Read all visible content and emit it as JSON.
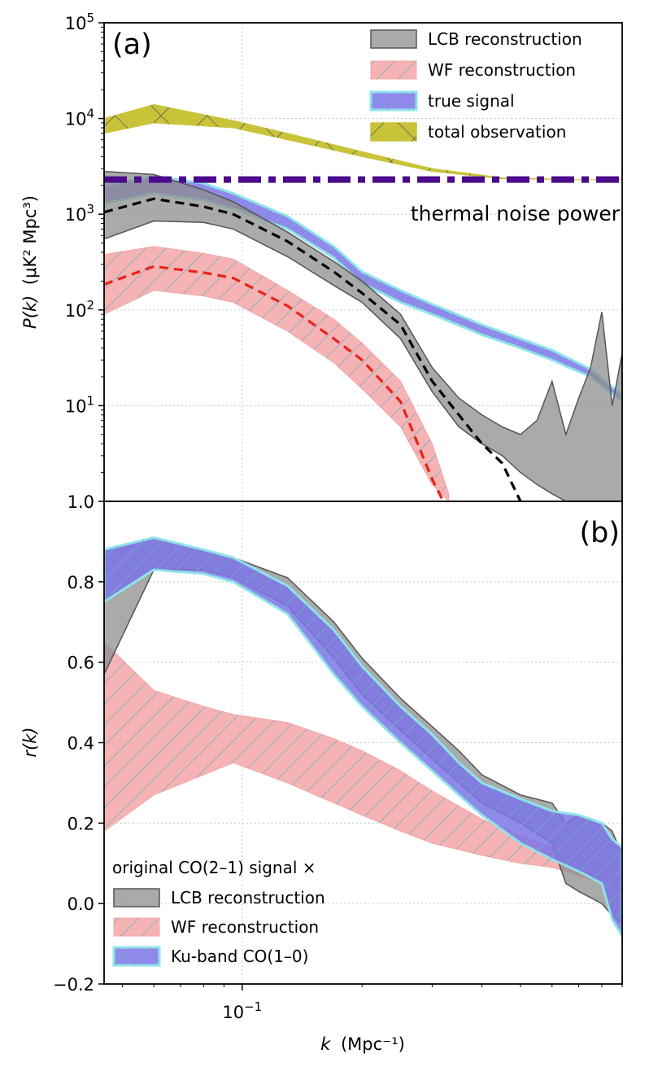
{
  "chart_data": [
    {
      "panel": "(a)",
      "type": "area",
      "xscale": "log",
      "yscale": "log",
      "xlim": [
        0.045,
        0.9
      ],
      "ylim": [
        1.0,
        100000
      ],
      "ylabel_var": "P(k)",
      "ylabel_units": "(μK² Mpc³)",
      "yticks": [
        {
          "value": 1,
          "label": "1.0"
        },
        {
          "value": 10,
          "base": "10",
          "exp": "1"
        },
        {
          "value": 100,
          "base": "10",
          "exp": "2"
        },
        {
          "value": 1000,
          "base": "10",
          "exp": "3"
        },
        {
          "value": 10000,
          "base": "10",
          "exp": "4"
        },
        {
          "value": 100000,
          "base": "10",
          "exp": "5"
        }
      ],
      "annotation": "thermal noise power",
      "noise_level": 2300,
      "legend_position": "top-right",
      "bands": [
        {
          "name": "total observation",
          "color": "#c9c33a",
          "x": [
            0.045,
            0.06,
            0.095,
            0.13,
            0.2,
            0.3,
            0.45,
            0.7,
            0.9
          ],
          "lo": [
            7000,
            9000,
            8000,
            6000,
            4000,
            2800,
            2350,
            2300,
            2300
          ],
          "hi": [
            10000,
            14000,
            9500,
            7000,
            4500,
            3000,
            2400,
            2300,
            2300
          ]
        },
        {
          "name": "true signal",
          "color": "#7d74e9",
          "x": [
            0.045,
            0.06,
            0.08,
            0.095,
            0.13,
            0.17,
            0.2,
            0.25,
            0.3,
            0.4,
            0.5,
            0.6,
            0.75,
            0.9
          ],
          "lo": [
            1300,
            1650,
            1400,
            1150,
            700,
            350,
            190,
            120,
            90,
            55,
            40,
            30,
            20,
            11
          ],
          "hi": [
            2000,
            2500,
            2100,
            1650,
            950,
            460,
            250,
            160,
            115,
            70,
            50,
            38,
            24,
            13
          ]
        },
        {
          "name": "LCB reconstruction",
          "color": "#8e8e8e",
          "x": [
            0.045,
            0.06,
            0.08,
            0.095,
            0.13,
            0.17,
            0.2,
            0.25,
            0.3,
            0.35,
            0.4,
            0.45,
            0.5,
            0.55,
            0.6,
            0.65,
            0.7,
            0.75,
            0.8,
            0.85,
            0.9
          ],
          "lo": [
            550,
            850,
            820,
            700,
            360,
            180,
            120,
            50,
            14,
            6,
            4,
            3,
            2,
            1.5,
            1.2,
            1.0,
            1.0,
            1.0,
            1.0,
            1.0,
            1.0
          ],
          "hi": [
            2800,
            2600,
            1800,
            1350,
            650,
            320,
            200,
            90,
            25,
            12,
            8,
            6,
            5,
            7,
            18,
            5,
            12,
            25,
            95,
            10,
            35
          ]
        },
        {
          "name": "WF reconstruction",
          "color": "#f4a6a6",
          "x": [
            0.045,
            0.06,
            0.08,
            0.095,
            0.13,
            0.17,
            0.2,
            0.25,
            0.3,
            0.33
          ],
          "lo": [
            90,
            160,
            140,
            120,
            60,
            28,
            15,
            6,
            1.5,
            1.0
          ],
          "hi": [
            380,
            460,
            390,
            340,
            160,
            80,
            45,
            18,
            4,
            1.2
          ]
        }
      ],
      "lines": [
        {
          "name": "LCB mean",
          "color": "#000000",
          "x": [
            0.045,
            0.06,
            0.08,
            0.095,
            0.13,
            0.17,
            0.2,
            0.25,
            0.3,
            0.35,
            0.4,
            0.45,
            0.5
          ],
          "y": [
            1050,
            1450,
            1200,
            1000,
            520,
            250,
            150,
            70,
            18,
            8,
            4,
            2.5,
            1.0
          ]
        },
        {
          "name": "WF mean",
          "color": "#e8231b",
          "x": [
            0.045,
            0.06,
            0.08,
            0.095,
            0.13,
            0.17,
            0.2,
            0.25,
            0.3,
            0.32
          ],
          "y": [
            185,
            285,
            245,
            215,
            110,
            50,
            30,
            11,
            1.7,
            1.0
          ]
        }
      ],
      "legend": [
        {
          "label": "LCB reconstruction",
          "color": "#8e8e8e",
          "edge": "#555555"
        },
        {
          "label": "WF reconstruction",
          "color": "#f4a6a6",
          "edge": "#f4a6a6"
        },
        {
          "label": "true signal",
          "color": "#7d74e9",
          "edge": "#8fe3ea"
        },
        {
          "label": "total observation",
          "color": "#c9c33a",
          "edge": "#c9c33a"
        }
      ]
    },
    {
      "panel": "(b)",
      "type": "area",
      "xscale": "log",
      "xlim": [
        0.045,
        0.9
      ],
      "ylim": [
        -0.2,
        1.0
      ],
      "xlabel_var": "k",
      "xlabel_units": "(Mpc⁻¹)",
      "ylabel": "r(k)",
      "xticks": [
        {
          "value": 0.1,
          "base": "10",
          "exp": "−1"
        }
      ],
      "yticks": [
        "−0.2",
        "0.0",
        "0.2",
        "0.4",
        "0.6",
        "0.8"
      ],
      "legend_title": "original CO(2–1) signal ×",
      "legend_position": "bottom-left",
      "bands": [
        {
          "name": "WF reconstruction",
          "color": "#f4a6a6",
          "x": [
            0.045,
            0.06,
            0.08,
            0.095,
            0.13,
            0.17,
            0.2,
            0.25,
            0.3,
            0.4,
            0.5,
            0.6,
            0.75,
            0.9
          ],
          "lo": [
            0.18,
            0.27,
            0.32,
            0.35,
            0.3,
            0.25,
            0.22,
            0.18,
            0.15,
            0.12,
            0.1,
            0.09,
            0.06,
            0.04
          ],
          "hi": [
            0.65,
            0.53,
            0.49,
            0.47,
            0.45,
            0.41,
            0.38,
            0.33,
            0.28,
            0.21,
            0.17,
            0.14,
            0.11,
            0.08
          ]
        },
        {
          "name": "LCB reconstruction",
          "color": "#8e8e8e",
          "x": [
            0.045,
            0.06,
            0.08,
            0.095,
            0.13,
            0.17,
            0.2,
            0.25,
            0.3,
            0.35,
            0.4,
            0.5,
            0.6,
            0.65,
            0.7,
            0.8,
            0.85,
            0.9
          ],
          "lo": [
            0.57,
            0.83,
            0.83,
            0.81,
            0.74,
            0.61,
            0.52,
            0.43,
            0.36,
            0.3,
            0.25,
            0.2,
            0.15,
            0.05,
            0.03,
            0.0,
            -0.03,
            -0.05
          ],
          "hi": [
            0.88,
            0.91,
            0.88,
            0.86,
            0.81,
            0.7,
            0.61,
            0.51,
            0.44,
            0.38,
            0.32,
            0.27,
            0.25,
            0.2,
            0.22,
            0.2,
            0.18,
            0.12
          ]
        },
        {
          "name": "Ku-band CO(1–0)",
          "color": "#7d74e9",
          "x": [
            0.045,
            0.06,
            0.08,
            0.095,
            0.13,
            0.17,
            0.2,
            0.25,
            0.3,
            0.35,
            0.4,
            0.5,
            0.6,
            0.7,
            0.8,
            0.85,
            0.9
          ],
          "lo": [
            0.75,
            0.83,
            0.82,
            0.8,
            0.72,
            0.57,
            0.49,
            0.4,
            0.33,
            0.27,
            0.22,
            0.15,
            0.11,
            0.08,
            0.05,
            -0.04,
            -0.08
          ],
          "hi": [
            0.88,
            0.91,
            0.88,
            0.86,
            0.79,
            0.68,
            0.59,
            0.49,
            0.42,
            0.35,
            0.3,
            0.26,
            0.23,
            0.22,
            0.2,
            0.16,
            0.14
          ]
        }
      ],
      "legend": [
        {
          "label": "LCB reconstruction",
          "color": "#8e8e8e",
          "edge": "#555555"
        },
        {
          "label": "WF reconstruction",
          "color": "#f4a6a6",
          "edge": "#f4a6a6"
        },
        {
          "label": "Ku-band CO(1–0)",
          "color": "#7d74e9",
          "edge": "#8fe3ea"
        }
      ]
    }
  ]
}
